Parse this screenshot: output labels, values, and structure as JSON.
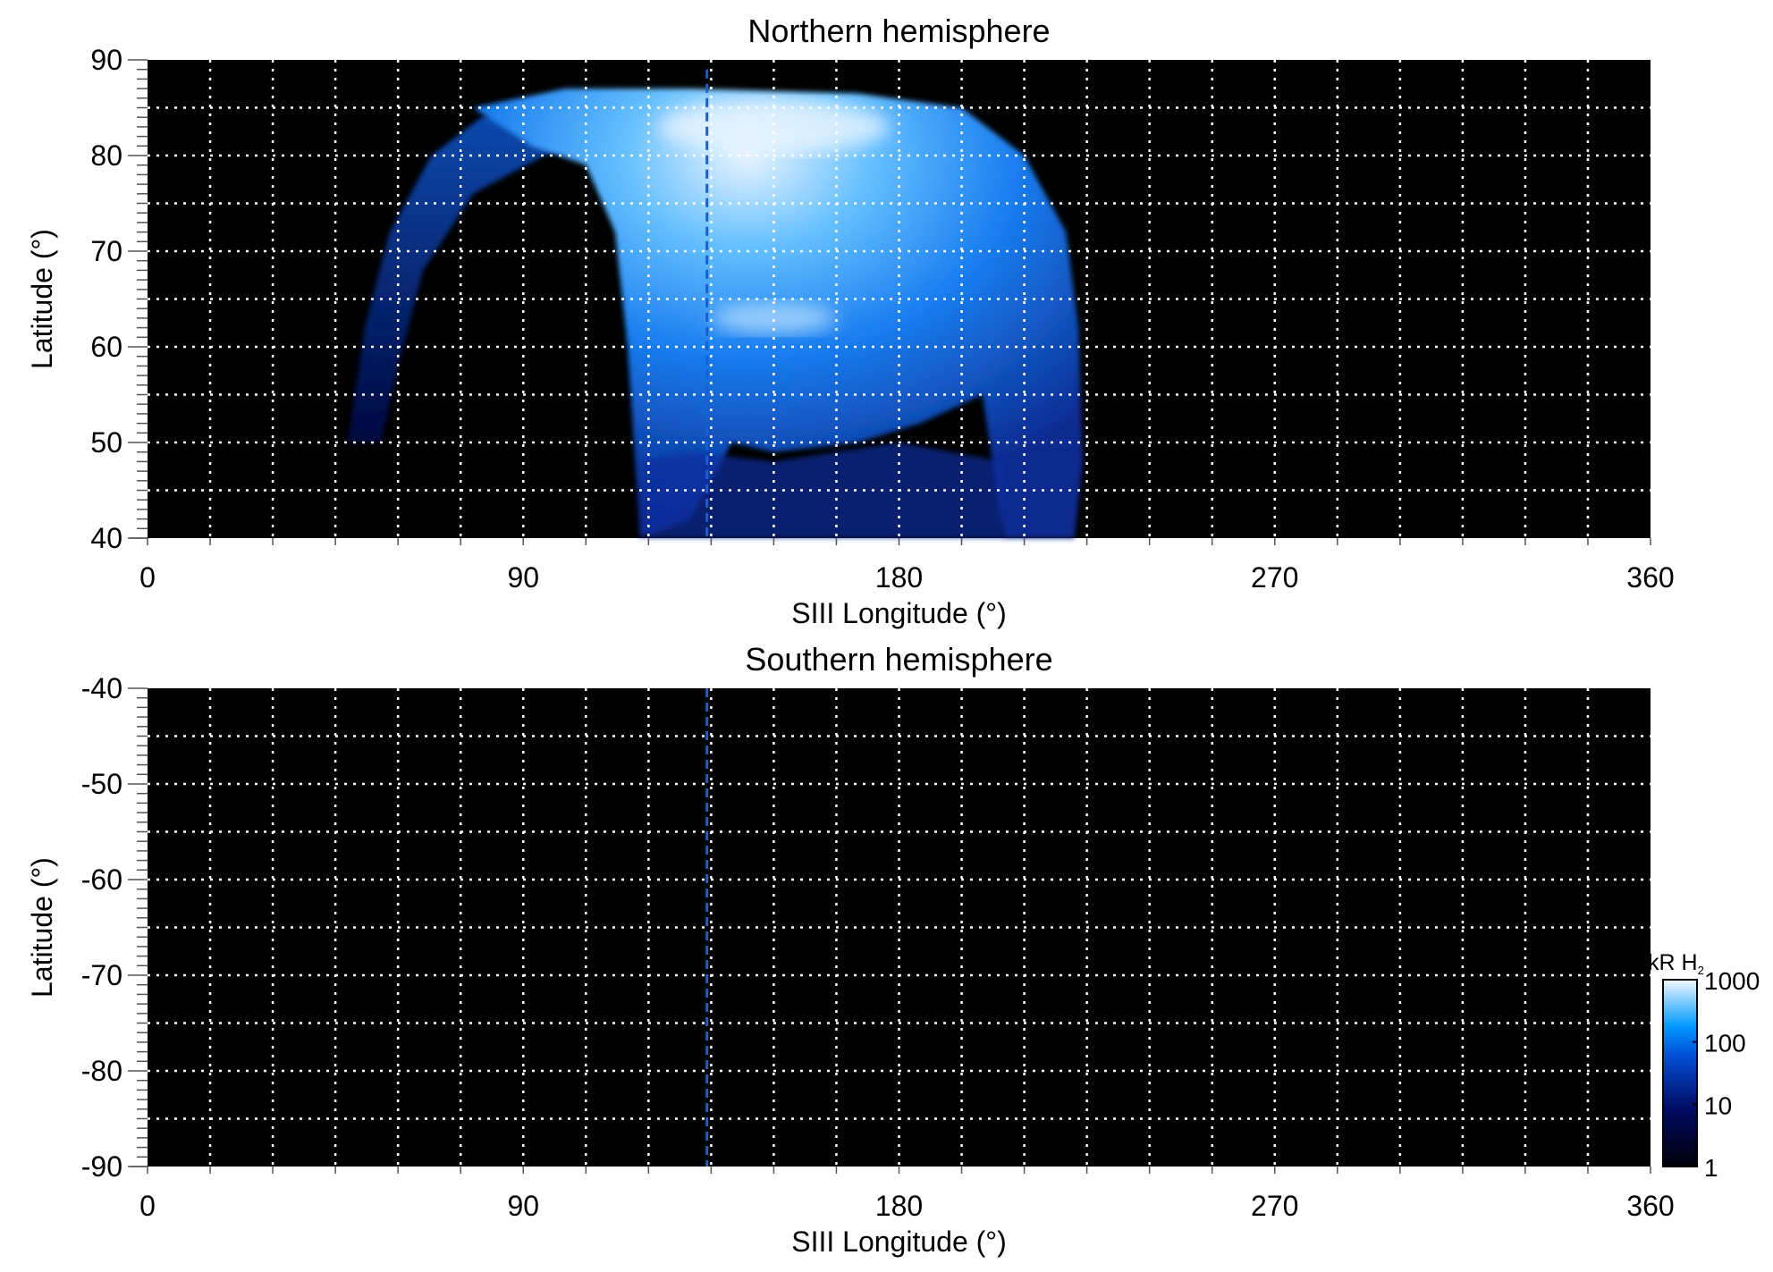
{
  "chart_data": [
    {
      "type": "heatmap",
      "title": "Northern hemisphere",
      "xlabel": "SIII Longitude (°)",
      "ylabel": "Latitude (°)",
      "xlim": [
        0,
        360
      ],
      "ylim": [
        40,
        90
      ],
      "xticks": [
        "0",
        "90",
        "180",
        "270",
        "360"
      ],
      "yticks": [
        "40",
        "50",
        "60",
        "70",
        "80",
        "90"
      ],
      "grid": true,
      "grid_x_step": 15,
      "grid_y_step": 5,
      "reference_longitude": 134,
      "reference_line_color": "#1a5fd0"
    },
    {
      "type": "heatmap",
      "title": "Southern hemisphere",
      "xlabel": "SIII Longitude (°)",
      "ylabel": "Latitude (°)",
      "xlim": [
        0,
        360
      ],
      "ylim": [
        -90,
        -40
      ],
      "xticks": [
        "0",
        "90",
        "180",
        "270",
        "360"
      ],
      "yticks": [
        "-90",
        "-80",
        "-70",
        "-60",
        "-50",
        "-40"
      ],
      "grid": true,
      "grid_x_step": 15,
      "grid_y_step": 5,
      "reference_longitude": 134,
      "reference_line_color": "#1a5fd0"
    }
  ],
  "colorbar": {
    "label": "kR H",
    "label_subscript": "2",
    "scale": "log",
    "ticks": [
      "1",
      "10",
      "100",
      "1000"
    ],
    "colors": [
      "#000008",
      "#000a60",
      "#0050d8",
      "#0099ff",
      "#f0f8ff"
    ]
  }
}
